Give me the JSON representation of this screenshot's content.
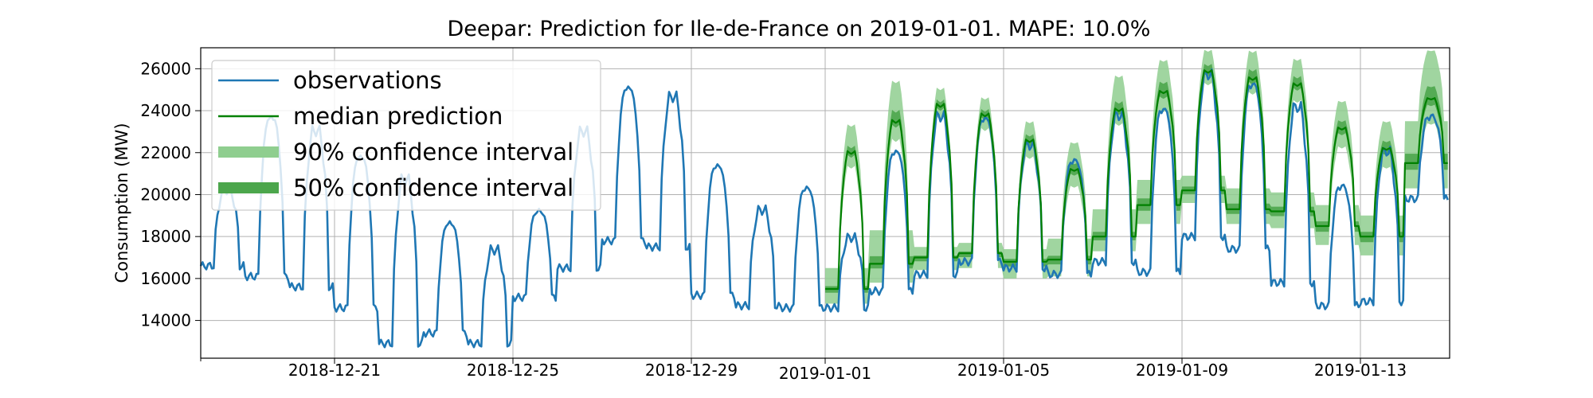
{
  "chart_data": {
    "type": "line",
    "title": "Deepar: Prediction for Ile-de-France on 2019-01-01. MAPE: 10.0%",
    "xlabel": "",
    "ylabel": "Consumption (MW)",
    "grid": true,
    "legend_position": "top-left",
    "xlim": [
      "2018-12-18",
      "2019-01-15"
    ],
    "ylim": [
      12200,
      27000
    ],
    "x_ticks": [
      "2018-12-21",
      "2018-12-25",
      "2018-12-29",
      "2019-01-01",
      "2019-01-05",
      "2019-01-09",
      "2019-01-13"
    ],
    "y_ticks": [
      14000,
      16000,
      18000,
      20000,
      22000,
      24000,
      26000
    ],
    "legend": [
      {
        "label": "observations",
        "kind": "line-thin",
        "color": "#1f77b4"
      },
      {
        "label": "median prediction",
        "kind": "line-thin",
        "color": "#008000"
      },
      {
        "label": "90% confidence interval",
        "kind": "band",
        "color": "#8fce8f"
      },
      {
        "label": "50% confidence interval",
        "kind": "band",
        "color": "#4ca64c"
      }
    ],
    "colors": {
      "observations": "#1f77b4",
      "median": "#008000",
      "ci90": "#8fce8f",
      "ci50": "#4ca64c"
    },
    "observations_daily": [
      {
        "date": "2018-12-18",
        "peak": 20500,
        "trough": 16600
      },
      {
        "date": "2018-12-19",
        "peak": 24200,
        "trough": 16100
      },
      {
        "date": "2018-12-20",
        "peak": 23600,
        "trough": 15600
      },
      {
        "date": "2018-12-21",
        "peak": 22300,
        "trough": 14600
      },
      {
        "date": "2018-12-22",
        "peak": 21300,
        "trough": 12900
      },
      {
        "date": "2018-12-23",
        "peak": 19000,
        "trough": 13400
      },
      {
        "date": "2018-12-24",
        "peak": 17700,
        "trough": 12900
      },
      {
        "date": "2018-12-25",
        "peak": 19500,
        "trough": 15100
      },
      {
        "date": "2018-12-26",
        "peak": 23500,
        "trough": 16500
      },
      {
        "date": "2018-12-27",
        "peak": 25600,
        "trough": 17800
      },
      {
        "date": "2018-12-28",
        "peak": 25200,
        "trough": 17500
      },
      {
        "date": "2018-12-29",
        "peak": 21800,
        "trough": 15200
      },
      {
        "date": "2018-12-30",
        "peak": 19600,
        "trough": 14700
      },
      {
        "date": "2018-12-31",
        "peak": 20700,
        "trough": 14600
      },
      {
        "date": "2019-01-01",
        "peak": 18200,
        "trough": 14600
      },
      {
        "date": "2019-01-02",
        "peak": 22500,
        "trough": 15400
      },
      {
        "date": "2019-01-03",
        "peak": 24300,
        "trough": 16200
      },
      {
        "date": "2019-01-04",
        "peak": 24100,
        "trough": 16800
      },
      {
        "date": "2019-01-05",
        "peak": 22800,
        "trough": 16500
      },
      {
        "date": "2019-01-06",
        "peak": 22000,
        "trough": 16200
      },
      {
        "date": "2019-01-07",
        "peak": 24300,
        "trough": 16800
      },
      {
        "date": "2019-01-08",
        "peak": 24600,
        "trough": 16300
      },
      {
        "date": "2019-01-09",
        "peak": 26300,
        "trough": 18000
      },
      {
        "date": "2019-01-10",
        "peak": 25800,
        "trough": 17400
      },
      {
        "date": "2019-01-11",
        "peak": 24800,
        "trough": 15800
      },
      {
        "date": "2019-01-12",
        "peak": 20800,
        "trough": 14700
      },
      {
        "date": "2019-01-13",
        "peak": 22600,
        "trough": 14900
      },
      {
        "date": "2019-01-14",
        "peak": 24000,
        "trough": 19800
      }
    ],
    "prediction_daily": [
      {
        "date": "2019-01-01",
        "median_peak": 22500,
        "median_trough": 15500,
        "ci90": [
          15000,
          23500
        ],
        "ci50": [
          15300,
          22800
        ]
      },
      {
        "date": "2019-01-02",
        "median_peak": 24000,
        "median_trough": 16700,
        "ci90": [
          16000,
          25600
        ],
        "ci50": [
          16400,
          24800
        ]
      },
      {
        "date": "2019-01-03",
        "median_peak": 24800,
        "median_trough": 17000,
        "ci90": [
          16600,
          25300
        ],
        "ci50": [
          16800,
          25000
        ]
      },
      {
        "date": "2019-01-04",
        "median_peak": 24300,
        "median_trough": 17200,
        "ci90": [
          16700,
          24800
        ],
        "ci50": [
          17000,
          24500
        ]
      },
      {
        "date": "2019-01-05",
        "median_peak": 23000,
        "median_trough": 16800,
        "ci90": [
          16200,
          23600
        ],
        "ci50": [
          16500,
          23300
        ]
      },
      {
        "date": "2019-01-06",
        "median_peak": 21500,
        "median_trough": 16900,
        "ci90": [
          16300,
          22500
        ],
        "ci50": [
          16600,
          21900
        ]
      },
      {
        "date": "2019-01-07",
        "median_peak": 24500,
        "median_trough": 18000,
        "ci90": [
          17500,
          25800
        ],
        "ci50": [
          17800,
          25000
        ]
      },
      {
        "date": "2019-01-08",
        "median_peak": 25300,
        "median_trough": 19500,
        "ci90": [
          18800,
          26500
        ],
        "ci50": [
          19100,
          26000
        ]
      },
      {
        "date": "2019-01-09",
        "median_peak": 26300,
        "median_trough": 20200,
        "ci90": [
          19800,
          27000
        ],
        "ci50": [
          20000,
          26700
        ]
      },
      {
        "date": "2019-01-10",
        "median_peak": 26000,
        "median_trough": 19300,
        "ci90": [
          18800,
          27000
        ],
        "ci50": [
          19000,
          26600
        ]
      },
      {
        "date": "2019-01-11",
        "median_peak": 25700,
        "median_trough": 19200,
        "ci90": [
          18600,
          26600
        ],
        "ci50": [
          18900,
          26200
        ]
      },
      {
        "date": "2019-01-12",
        "median_peak": 23500,
        "median_trough": 18500,
        "ci90": [
          17800,
          24500
        ],
        "ci50": [
          18100,
          24000
        ]
      },
      {
        "date": "2019-01-13",
        "median_peak": 22500,
        "median_trough": 18000,
        "ci90": [
          17300,
          23500
        ],
        "ci50": [
          17600,
          23000
        ]
      },
      {
        "date": "2019-01-14",
        "median_peak": 24800,
        "median_trough": 21500,
        "ci90": [
          20500,
          26800
        ],
        "ci50": [
          21000,
          25800
        ]
      }
    ]
  }
}
